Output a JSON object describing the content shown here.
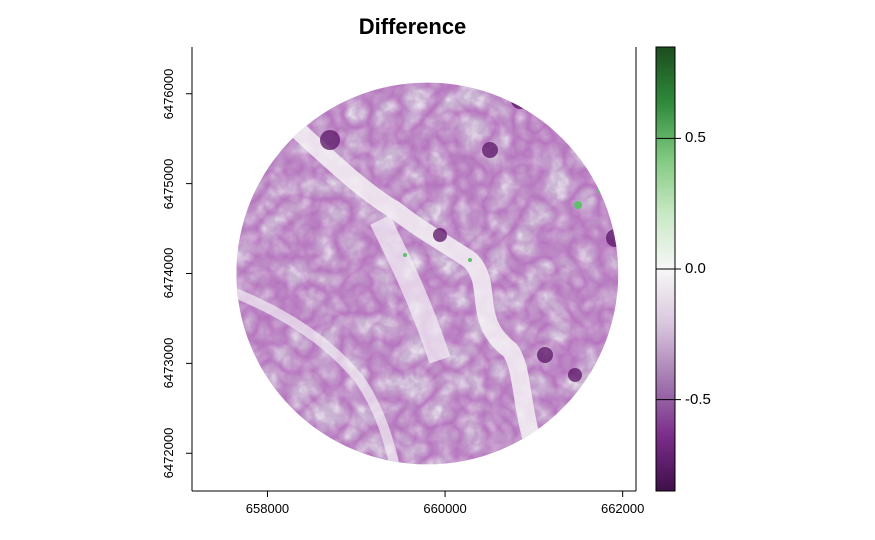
{
  "title": "Difference",
  "x_axis": {
    "ticks": [
      {
        "value": 658000,
        "label": "658000"
      },
      {
        "value": 660000,
        "label": "660000"
      },
      {
        "value": 662000,
        "label": "662000"
      }
    ],
    "range": [
      657150,
      662150
    ]
  },
  "y_axis": {
    "ticks": [
      {
        "value": 6472000,
        "label": "6472000"
      },
      {
        "value": 6473000,
        "label": "6473000"
      },
      {
        "value": 6474000,
        "label": "6474000"
      },
      {
        "value": 6475000,
        "label": "6475000"
      },
      {
        "value": 6476000,
        "label": "6476000"
      }
    ],
    "range": [
      6471580,
      6476520
    ]
  },
  "colorbar": {
    "range": [
      -0.85,
      0.85
    ],
    "ticks": [
      {
        "value": 0.5,
        "label": "0.5"
      },
      {
        "value": 0.0,
        "label": "0.0"
      },
      {
        "value": -0.5,
        "label": "-0.5"
      }
    ],
    "colors_top_to_bottom": [
      "#1b4d1f",
      "#2e8a3a",
      "#7fc97f",
      "#c8e8c4",
      "#f7f7f7",
      "#d9c6de",
      "#a47ab0",
      "#7b2d8b",
      "#3f0f4a"
    ]
  },
  "map": {
    "footprint": "circle",
    "center": [
      659800,
      6474000
    ],
    "radius_m": 2150,
    "base_color": "#c9b2d2"
  }
}
